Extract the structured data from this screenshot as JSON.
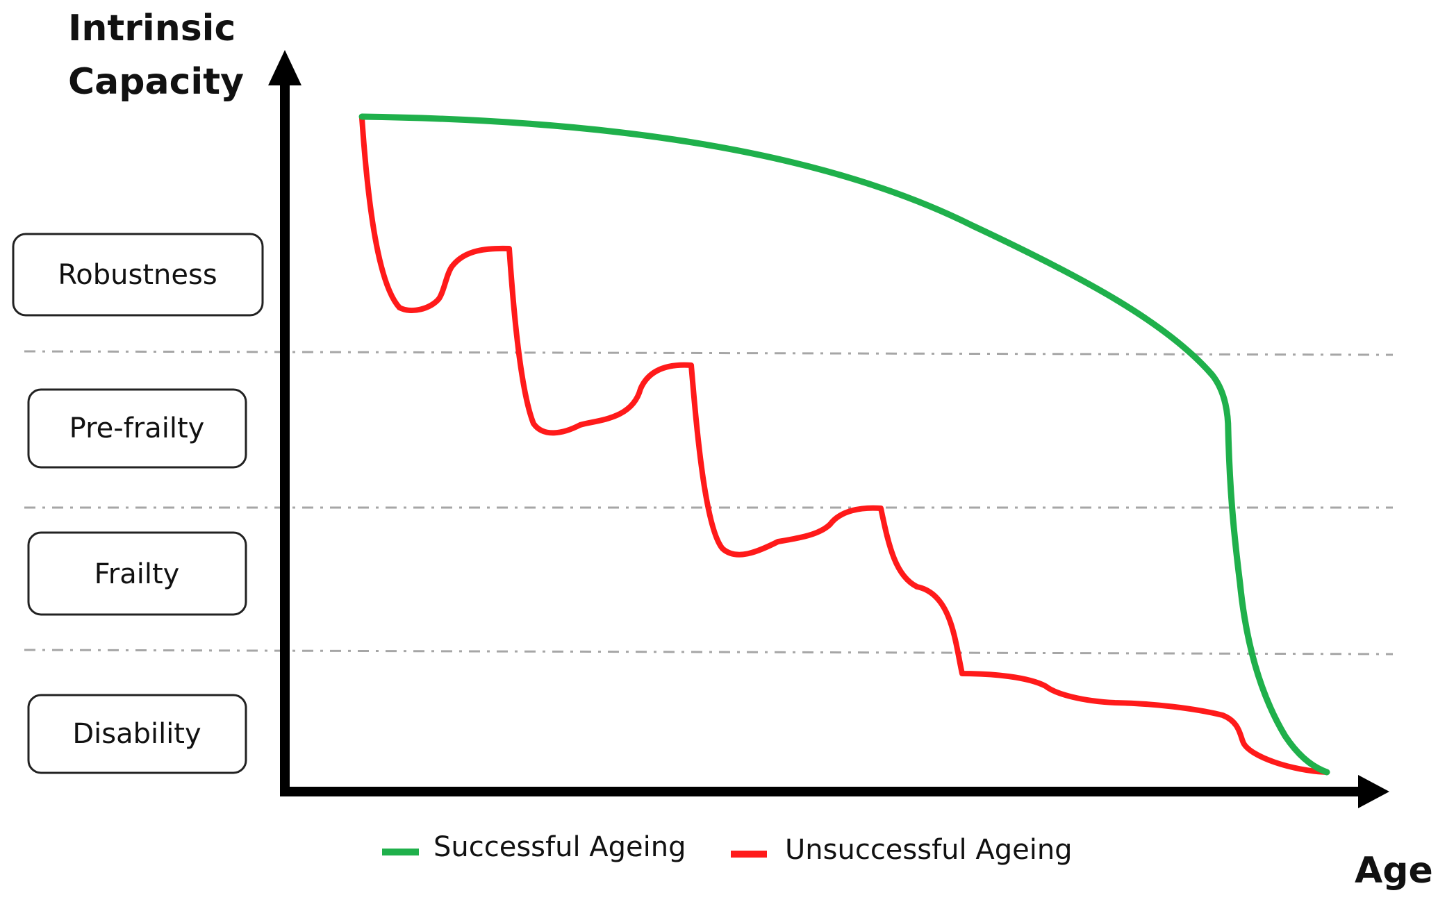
{
  "diagram": {
    "y_axis_title_line1": "Intrinsic",
    "y_axis_title_line2": "Capacity",
    "x_axis_title": "Age",
    "states": [
      {
        "label": "Robustness"
      },
      {
        "label": "Pre-frailty"
      },
      {
        "label": "Frailty"
      },
      {
        "label": "Disability"
      }
    ],
    "legend": [
      {
        "label": "Successful Ageing",
        "color": "#1fb04b"
      },
      {
        "label": "Unsuccessful Ageing",
        "color": "#ff1a1a"
      }
    ]
  }
}
